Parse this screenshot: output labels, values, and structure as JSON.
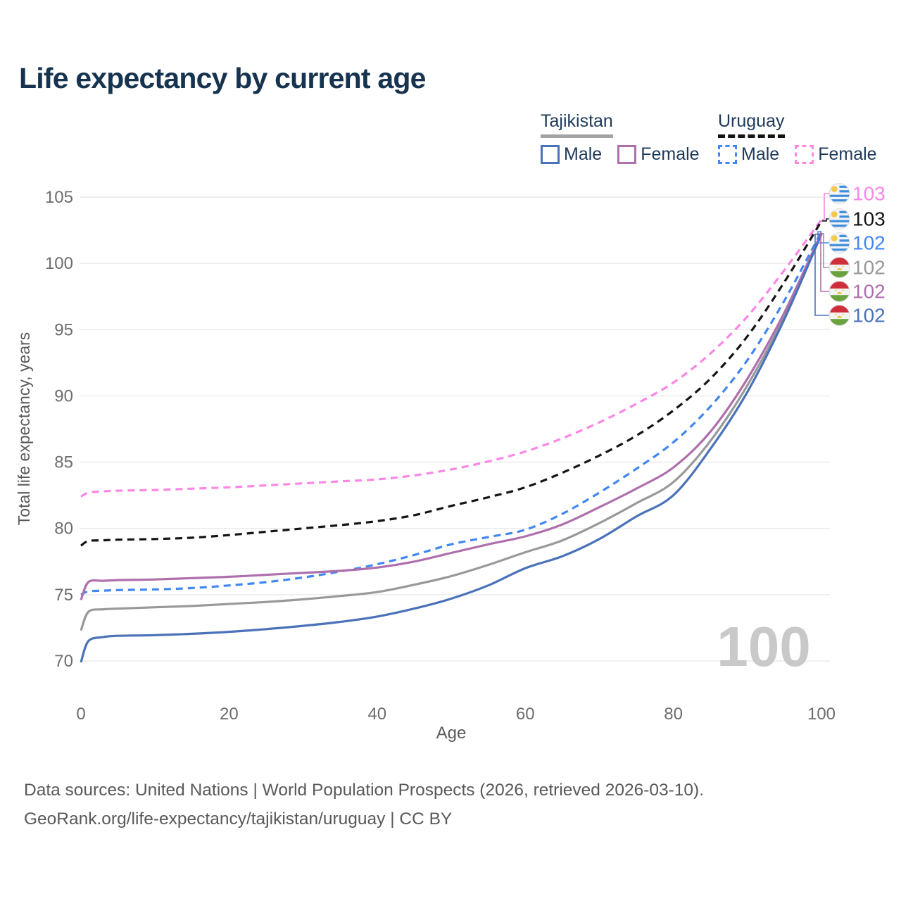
{
  "title": "Life expectancy by current age",
  "watermark": "100",
  "legend": {
    "groups": [
      {
        "name": "Tajikistan",
        "style": "solid",
        "underline_color": "#a3a3a3",
        "items": [
          {
            "label": "Male",
            "color": "#4a72b9",
            "dashed": false
          },
          {
            "label": "Female",
            "color": "#ae6fac",
            "dashed": false
          }
        ]
      },
      {
        "name": "Uruguay",
        "style": "dashed",
        "underline_color": "#141414",
        "items": [
          {
            "label": "Male",
            "color": "#4187f2",
            "dashed": true
          },
          {
            "label": "Female",
            "color": "#fb87e4",
            "dashed": true
          }
        ]
      }
    ]
  },
  "chart_data": {
    "type": "line",
    "title": "Life expectancy by current age",
    "xlabel": "Age",
    "ylabel": "Total life expectancy, years",
    "xlim": [
      0,
      100
    ],
    "ylim": [
      70,
      105
    ],
    "x_ticks": [
      0,
      20,
      40,
      60,
      80,
      100
    ],
    "y_ticks": [
      70,
      75,
      80,
      85,
      90,
      95,
      100,
      105
    ],
    "grid": true,
    "legend_position": "top-right",
    "ages": [
      0,
      1,
      3,
      5,
      10,
      15,
      20,
      25,
      30,
      35,
      40,
      45,
      50,
      55,
      60,
      65,
      70,
      75,
      80,
      85,
      90,
      95,
      100
    ],
    "series": [
      {
        "name": "Uruguay Female",
        "country": "Uruguay",
        "sex": "Female",
        "color": "#fb87e4",
        "dashed": true,
        "flag": "uruguay",
        "end_label": "103",
        "values": [
          82.4,
          82.7,
          82.8,
          82.85,
          82.9,
          83.0,
          83.1,
          83.25,
          83.4,
          83.55,
          83.7,
          84.0,
          84.45,
          85.05,
          85.8,
          86.8,
          88.0,
          89.4,
          91.0,
          93.2,
          96.0,
          99.5,
          103.3
        ]
      },
      {
        "name": "Uruguay Both sexes",
        "country": "Uruguay",
        "sex": "Both",
        "color": "#141414",
        "dashed": true,
        "flag": "uruguay",
        "end_label": "103",
        "values": [
          78.7,
          79.05,
          79.1,
          79.15,
          79.2,
          79.3,
          79.5,
          79.75,
          80.0,
          80.25,
          80.55,
          81.0,
          81.7,
          82.35,
          83.1,
          84.2,
          85.5,
          87.0,
          88.9,
          91.3,
          94.5,
          98.6,
          103.2
        ]
      },
      {
        "name": "Uruguay Male",
        "country": "Uruguay",
        "sex": "Male",
        "color": "#4187f2",
        "dashed": true,
        "flag": "uruguay",
        "end_label": "102",
        "values": [
          75.0,
          75.25,
          75.3,
          75.35,
          75.4,
          75.5,
          75.7,
          75.95,
          76.3,
          76.75,
          77.3,
          78.0,
          78.8,
          79.35,
          79.9,
          81.1,
          82.7,
          84.5,
          86.5,
          89.2,
          92.7,
          97.2,
          102.4
        ]
      },
      {
        "name": "Tajikistan Both sexes",
        "country": "Tajikistan",
        "sex": "Both",
        "color": "#999999",
        "dashed": false,
        "flag": "tajikistan",
        "end_label": "102",
        "values": [
          72.3,
          73.7,
          73.9,
          73.95,
          74.05,
          74.15,
          74.3,
          74.45,
          74.65,
          74.9,
          75.2,
          75.75,
          76.4,
          77.25,
          78.2,
          79.1,
          80.4,
          81.9,
          83.5,
          86.6,
          90.8,
          96.0,
          102.25
        ]
      },
      {
        "name": "Tajikistan Female",
        "country": "Tajikistan",
        "sex": "Female",
        "color": "#ae6fac",
        "dashed": false,
        "flag": "tajikistan",
        "end_label": "102",
        "values": [
          74.6,
          75.95,
          76.05,
          76.1,
          76.15,
          76.25,
          76.35,
          76.5,
          76.65,
          76.8,
          77.05,
          77.5,
          78.15,
          78.8,
          79.4,
          80.3,
          81.6,
          83.0,
          84.6,
          87.3,
          91.3,
          96.3,
          102.3
        ]
      },
      {
        "name": "Tajikistan Male",
        "country": "Tajikistan",
        "sex": "Male",
        "color": "#4a72b9",
        "dashed": false,
        "flag": "tajikistan",
        "end_label": "102",
        "values": [
          69.9,
          71.5,
          71.8,
          71.9,
          71.95,
          72.05,
          72.2,
          72.4,
          72.65,
          72.95,
          73.35,
          73.95,
          74.7,
          75.7,
          77.0,
          77.9,
          79.2,
          80.9,
          82.5,
          86.0,
          90.3,
          95.8,
          102.2
        ]
      }
    ]
  },
  "footer": {
    "line1": "Data sources: United Nations | World Population Prospects (2026, retrieved 2026-03-10).",
    "line2": "GeoRank.org/life-expectancy/tajikistan/uruguay | CC BY"
  }
}
